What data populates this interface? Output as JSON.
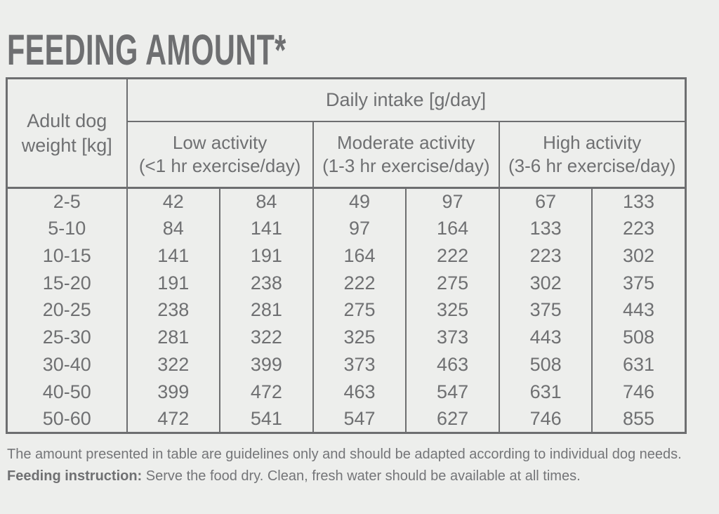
{
  "page": {
    "title": "FEEDING AMOUNT*",
    "background_color": "#edeeec",
    "ink_color": "#6f7072",
    "border_color": "#6d6e70"
  },
  "table": {
    "corner": {
      "line1": "Adult dog",
      "line2": "weight [kg]"
    },
    "daily_intake_header": "Daily intake [g/day]",
    "activity_groups": [
      {
        "label": "Low activity",
        "sublabel": "(<1 hr exercise/day)"
      },
      {
        "label": "Moderate activity",
        "sublabel": "(1-3 hr exercise/day)"
      },
      {
        "label": "High activity",
        "sublabel": "(3-6 hr exercise/day)"
      }
    ],
    "rows": [
      {
        "weight": "2-5",
        "values": [
          "42",
          "84",
          "49",
          "97",
          "67",
          "133"
        ]
      },
      {
        "weight": "5-10",
        "values": [
          "84",
          "141",
          "97",
          "164",
          "133",
          "223"
        ]
      },
      {
        "weight": "10-15",
        "values": [
          "141",
          "191",
          "164",
          "222",
          "223",
          "302"
        ]
      },
      {
        "weight": "15-20",
        "values": [
          "191",
          "238",
          "222",
          "275",
          "302",
          "375"
        ]
      },
      {
        "weight": "20-25",
        "values": [
          "238",
          "281",
          "275",
          "325",
          "375",
          "443"
        ]
      },
      {
        "weight": "25-30",
        "values": [
          "281",
          "322",
          "325",
          "373",
          "443",
          "508"
        ]
      },
      {
        "weight": "30-40",
        "values": [
          "322",
          "399",
          "373",
          "463",
          "508",
          "631"
        ]
      },
      {
        "weight": "40-50",
        "values": [
          "399",
          "472",
          "463",
          "547",
          "631",
          "746"
        ]
      },
      {
        "weight": "50-60",
        "values": [
          "472",
          "541",
          "547",
          "627",
          "746",
          "855"
        ]
      }
    ]
  },
  "footer": {
    "line1": "The amount presented in table are guidelines only and should be adapted according to individual dog needs.",
    "line2_bold": "Feeding instruction:",
    "line2_rest": " Serve the food dry. Clean, fresh water should be available at all times."
  }
}
